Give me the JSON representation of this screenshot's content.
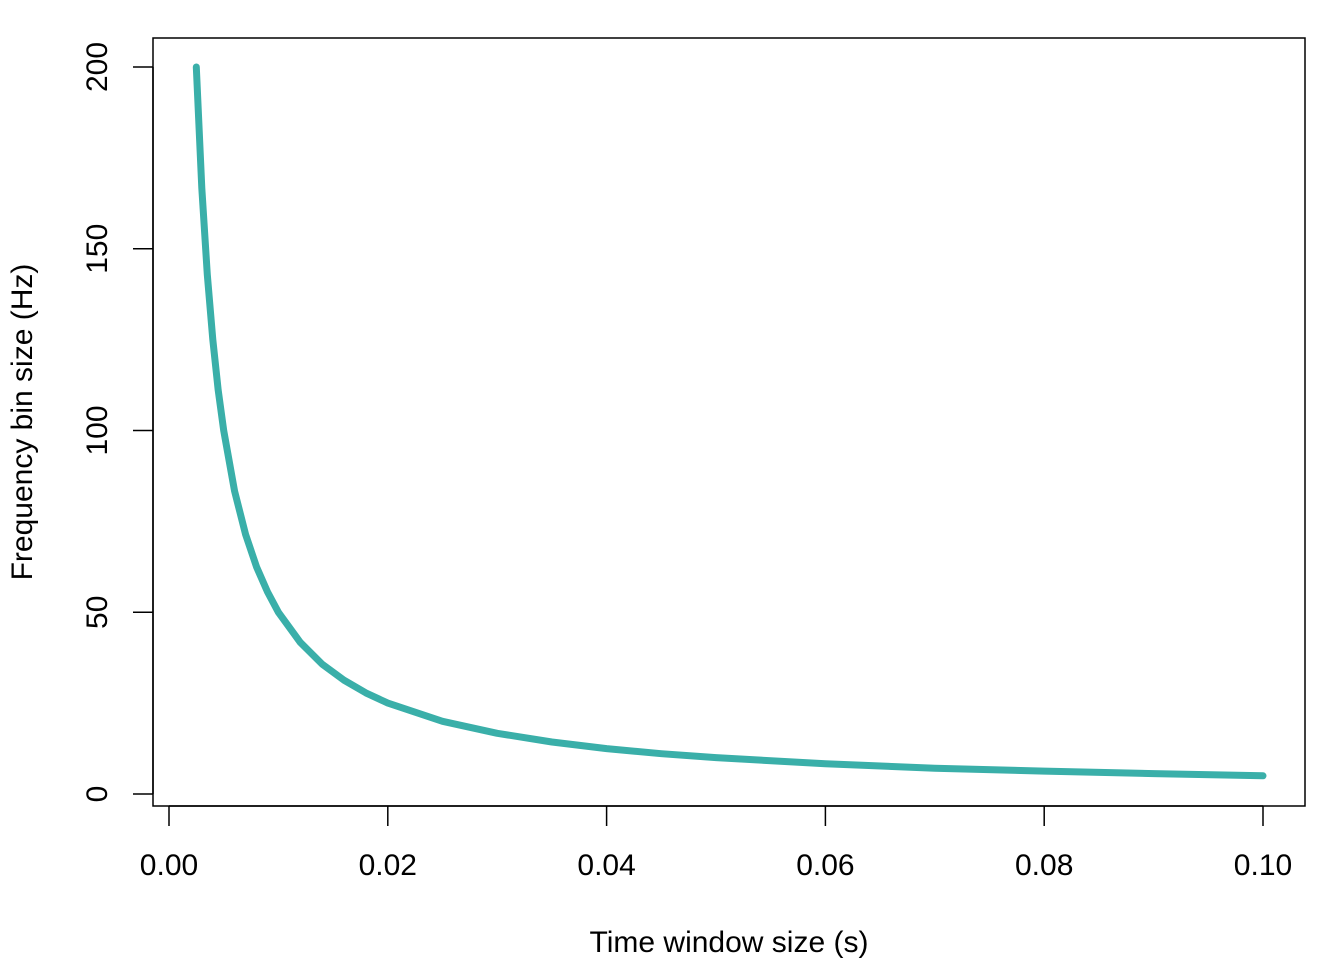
{
  "chart_data": {
    "type": "line",
    "title": "",
    "xlabel": "Time window size (s)",
    "ylabel": "Frequency bin size (Hz)",
    "xlim": [
      0.0,
      0.1
    ],
    "ylim": [
      0,
      200
    ],
    "x_ticks": [
      "0.00",
      "0.02",
      "0.04",
      "0.06",
      "0.08",
      "0.10"
    ],
    "x_tick_values": [
      0.0,
      0.02,
      0.04,
      0.06,
      0.08,
      0.1
    ],
    "y_ticks": [
      "0",
      "50",
      "100",
      "150",
      "200"
    ],
    "y_tick_values": [
      0,
      50,
      100,
      150,
      200
    ],
    "grid": false,
    "legend": "none",
    "line_color": "#3AAFA9",
    "series": [
      {
        "x": [
          0.0025,
          0.003,
          0.0035,
          0.004,
          0.0045,
          0.005,
          0.006,
          0.007,
          0.008,
          0.009,
          0.01,
          0.012,
          0.014,
          0.016,
          0.018,
          0.02,
          0.025,
          0.03,
          0.035,
          0.04,
          0.045,
          0.05,
          0.06,
          0.07,
          0.08,
          0.09,
          0.1
        ],
        "y": [
          200,
          166.7,
          142.9,
          125,
          111.1,
          100,
          83.3,
          71.4,
          62.5,
          55.6,
          50,
          41.7,
          35.7,
          31.3,
          27.8,
          25,
          20,
          16.7,
          14.3,
          12.5,
          11.1,
          10,
          8.3,
          7.1,
          6.3,
          5.6,
          5
        ]
      }
    ]
  }
}
